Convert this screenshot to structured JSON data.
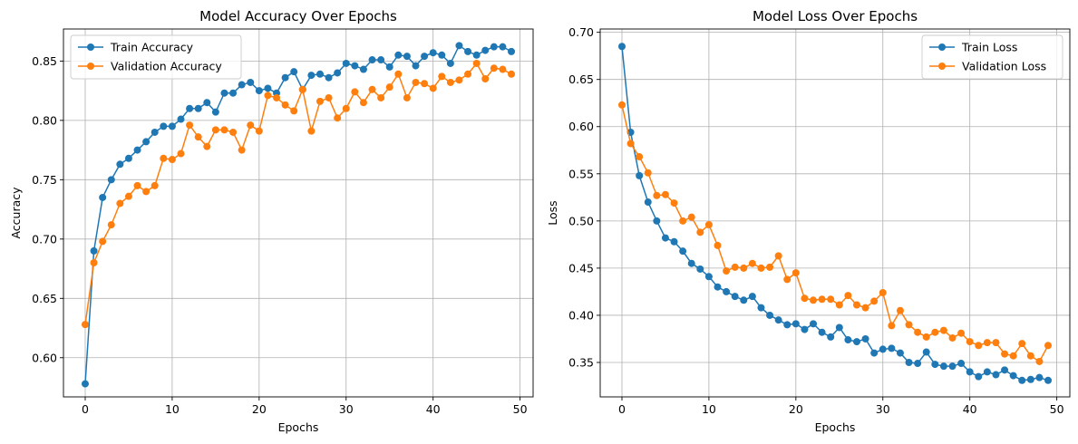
{
  "chart_data": [
    {
      "type": "line",
      "title": "Model Accuracy Over Epochs",
      "xlabel": "Epochs",
      "ylabel": "Accuracy",
      "xlim": [
        -2.5,
        51.5
      ],
      "ylim": [
        0.567,
        0.877
      ],
      "xticks": [
        0,
        10,
        20,
        30,
        40,
        50
      ],
      "yticks": [
        0.6,
        0.65,
        0.7,
        0.75,
        0.8,
        0.85
      ],
      "ytick_labels": [
        "0.60",
        "0.65",
        "0.70",
        "0.75",
        "0.80",
        "0.85"
      ],
      "grid": true,
      "legend_placement": "top-left",
      "x": [
        0,
        1,
        2,
        3,
        4,
        5,
        6,
        7,
        8,
        9,
        10,
        11,
        12,
        13,
        14,
        15,
        16,
        17,
        18,
        19,
        20,
        21,
        22,
        23,
        24,
        25,
        26,
        27,
        28,
        29,
        30,
        31,
        32,
        33,
        34,
        35,
        36,
        37,
        38,
        39,
        40,
        41,
        42,
        43,
        44,
        45,
        46,
        47,
        48,
        49
      ],
      "series": [
        {
          "name": "Train Accuracy",
          "color": "#1f77b4",
          "values": [
            0.578,
            0.69,
            0.735,
            0.75,
            0.763,
            0.768,
            0.775,
            0.782,
            0.79,
            0.795,
            0.795,
            0.801,
            0.81,
            0.81,
            0.815,
            0.807,
            0.823,
            0.823,
            0.83,
            0.832,
            0.825,
            0.827,
            0.823,
            0.836,
            0.841,
            0.826,
            0.838,
            0.839,
            0.836,
            0.84,
            0.848,
            0.846,
            0.843,
            0.851,
            0.851,
            0.845,
            0.855,
            0.854,
            0.846,
            0.854,
            0.857,
            0.855,
            0.848,
            0.863,
            0.858,
            0.855,
            0.859,
            0.862,
            0.862,
            0.858
          ]
        },
        {
          "name": "Validation Accuracy",
          "color": "#ff7f0e",
          "values": [
            0.628,
            0.68,
            0.698,
            0.712,
            0.73,
            0.736,
            0.745,
            0.74,
            0.745,
            0.768,
            0.767,
            0.772,
            0.796,
            0.786,
            0.778,
            0.792,
            0.792,
            0.79,
            0.775,
            0.796,
            0.791,
            0.821,
            0.819,
            0.813,
            0.808,
            0.826,
            0.791,
            0.816,
            0.819,
            0.802,
            0.81,
            0.824,
            0.815,
            0.826,
            0.819,
            0.828,
            0.839,
            0.819,
            0.832,
            0.831,
            0.827,
            0.837,
            0.832,
            0.834,
            0.839,
            0.848,
            0.835,
            0.844,
            0.843,
            0.839
          ]
        }
      ]
    },
    {
      "type": "line",
      "title": "Model Loss Over Epochs",
      "xlabel": "Epochs",
      "ylabel": "Loss",
      "xlim": [
        -2.5,
        51.5
      ],
      "ylim": [
        0.3135,
        0.7035
      ],
      "xticks": [
        0,
        10,
        20,
        30,
        40,
        50
      ],
      "yticks": [
        0.35,
        0.4,
        0.45,
        0.5,
        0.55,
        0.6,
        0.65,
        0.7
      ],
      "ytick_labels": [
        "0.35",
        "0.40",
        "0.45",
        "0.50",
        "0.55",
        "0.60",
        "0.65",
        "0.70"
      ],
      "grid": true,
      "legend_placement": "top-right",
      "x": [
        0,
        1,
        2,
        3,
        4,
        5,
        6,
        7,
        8,
        9,
        10,
        11,
        12,
        13,
        14,
        15,
        16,
        17,
        18,
        19,
        20,
        21,
        22,
        23,
        24,
        25,
        26,
        27,
        28,
        29,
        30,
        31,
        32,
        33,
        34,
        35,
        36,
        37,
        38,
        39,
        40,
        41,
        42,
        43,
        44,
        45,
        46,
        47,
        48,
        49
      ],
      "series": [
        {
          "name": "Train Loss",
          "color": "#1f77b4",
          "values": [
            0.685,
            0.594,
            0.548,
            0.52,
            0.5,
            0.482,
            0.478,
            0.468,
            0.455,
            0.449,
            0.441,
            0.43,
            0.425,
            0.42,
            0.416,
            0.42,
            0.408,
            0.4,
            0.395,
            0.39,
            0.391,
            0.385,
            0.391,
            0.382,
            0.377,
            0.387,
            0.374,
            0.372,
            0.375,
            0.36,
            0.364,
            0.365,
            0.36,
            0.35,
            0.349,
            0.361,
            0.348,
            0.346,
            0.346,
            0.349,
            0.34,
            0.335,
            0.34,
            0.337,
            0.342,
            0.336,
            0.331,
            0.332,
            0.334,
            0.331
          ]
        },
        {
          "name": "Validation Loss",
          "color": "#ff7f0e",
          "values": [
            0.623,
            0.582,
            0.568,
            0.551,
            0.527,
            0.528,
            0.519,
            0.5,
            0.504,
            0.488,
            0.496,
            0.474,
            0.447,
            0.451,
            0.45,
            0.455,
            0.45,
            0.451,
            0.463,
            0.438,
            0.445,
            0.418,
            0.416,
            0.417,
            0.417,
            0.411,
            0.421,
            0.411,
            0.408,
            0.415,
            0.424,
            0.389,
            0.405,
            0.39,
            0.382,
            0.377,
            0.382,
            0.384,
            0.376,
            0.381,
            0.372,
            0.368,
            0.371,
            0.371,
            0.359,
            0.357,
            0.37,
            0.357,
            0.351,
            0.368
          ]
        }
      ]
    }
  ]
}
